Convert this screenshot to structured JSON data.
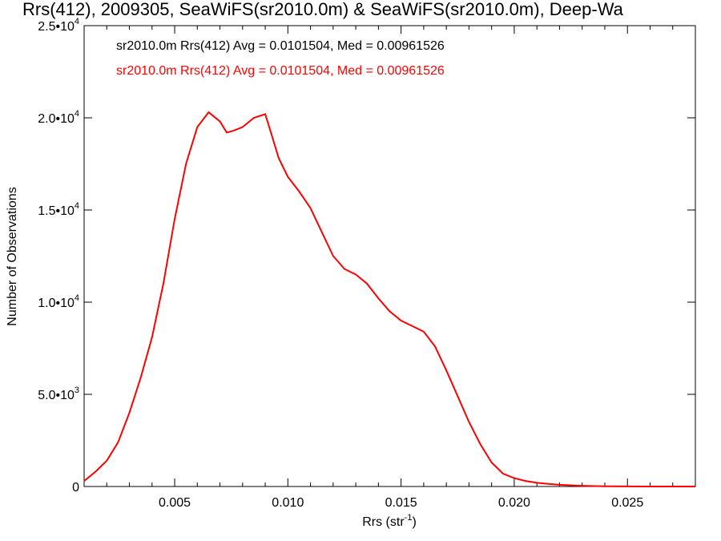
{
  "chart_data": {
    "type": "line",
    "title": "Rrs(412), 2009305, SeaWiFS(sr2010.0m) & SeaWiFS(sr2010.0m), Deep-Wa",
    "xlabel": "Rrs (str",
    "xlabel_superscript": "-1",
    "xlabel_suffix": ")",
    "ylabel": "Number of Observations",
    "xlim": [
      0.001,
      0.028
    ],
    "ylim": [
      0,
      25000
    ],
    "x_ticks": [
      {
        "value": 0.005,
        "label": "0.005"
      },
      {
        "value": 0.01,
        "label": "0.010"
      },
      {
        "value": 0.015,
        "label": "0.015"
      },
      {
        "value": 0.02,
        "label": "0.020"
      },
      {
        "value": 0.025,
        "label": "0.025"
      }
    ],
    "y_ticks": [
      {
        "value": 0,
        "mantissa": "0",
        "exp": ""
      },
      {
        "value": 5000,
        "mantissa": "5.0•10",
        "exp": "3"
      },
      {
        "value": 10000,
        "mantissa": "1.0•10",
        "exp": "4"
      },
      {
        "value": 15000,
        "mantissa": "1.5•10",
        "exp": "4"
      },
      {
        "value": 20000,
        "mantissa": "2.0•10",
        "exp": "4"
      },
      {
        "value": 25000,
        "mantissa": "2.5•10",
        "exp": "4"
      }
    ],
    "legend": [
      {
        "text": "sr2010.0m Rrs(412) Avg = 0.0101504, Med = 0.00961526",
        "color": "#000000"
      },
      {
        "text": "sr2010.0m Rrs(412) Avg = 0.0101504, Med = 0.00961526",
        "color": "#ff0000"
      }
    ],
    "series": [
      {
        "color": "#ff0000",
        "x": [
          0.001,
          0.0015,
          0.002,
          0.0025,
          0.003,
          0.0035,
          0.004,
          0.0045,
          0.005,
          0.0055,
          0.006,
          0.0065,
          0.007,
          0.0073,
          0.0076,
          0.008,
          0.0085,
          0.009,
          0.0093,
          0.0096,
          0.01,
          0.0105,
          0.011,
          0.0115,
          0.012,
          0.0125,
          0.013,
          0.0135,
          0.014,
          0.0145,
          0.015,
          0.0155,
          0.016,
          0.0165,
          0.017,
          0.0175,
          0.018,
          0.0185,
          0.019,
          0.0195,
          0.02,
          0.0205,
          0.021,
          0.0215,
          0.022,
          0.023,
          0.024,
          0.025,
          0.026,
          0.027,
          0.028
        ],
        "y": [
          300,
          800,
          1400,
          2400,
          4000,
          5900,
          8100,
          11000,
          14500,
          17500,
          19500,
          20300,
          19800,
          19200,
          19300,
          19500,
          20000,
          20200,
          19000,
          17800,
          16800,
          16000,
          15100,
          13800,
          12500,
          11800,
          11500,
          11000,
          10200,
          9500,
          9000,
          8700,
          8400,
          7600,
          6300,
          4900,
          3500,
          2300,
          1300,
          700,
          450,
          300,
          200,
          140,
          90,
          40,
          15,
          5,
          2,
          1,
          0
        ]
      }
    ]
  }
}
